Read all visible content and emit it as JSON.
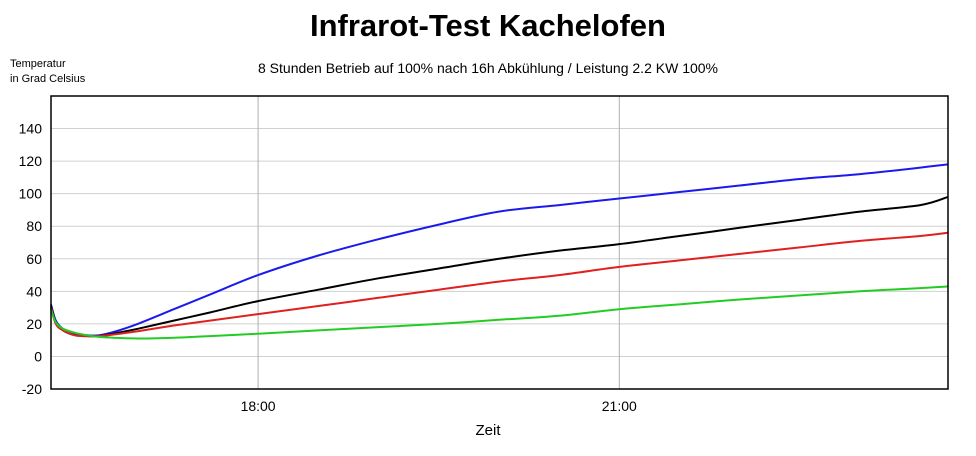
{
  "chart_data": {
    "type": "line",
    "title": "Infrarot-Test Kachelofen",
    "subtitle": "8 Stunden Betrieb auf 100% nach 16h Abkühlung / Leistung 2.2 KW 100%",
    "ylabel_line1": "Temperatur",
    "ylabel_line2": "in Grad Celsius",
    "xlabel": "Zeit",
    "x_unit": "hours (time of day)",
    "xlim": [
      16.28,
      23.73
    ],
    "ylim": [
      -20,
      160
    ],
    "yticks": [
      -20,
      0,
      20,
      40,
      60,
      80,
      100,
      120,
      140
    ],
    "xticks": [
      {
        "value": 18.0,
        "label": "18:00"
      },
      {
        "value": 21.0,
        "label": "21:00"
      }
    ],
    "grid": true,
    "series": [
      {
        "color": "#1a1aee",
        "x": [
          16.28,
          16.32,
          16.38,
          16.48,
          16.58,
          16.68,
          16.8,
          17.0,
          17.3,
          17.6,
          18.0,
          18.5,
          19.0,
          19.5,
          20.0,
          20.5,
          21.0,
          21.5,
          22.0,
          22.5,
          23.0,
          23.5,
          23.73
        ],
        "y": [
          32,
          22,
          17,
          14,
          13,
          13,
          15,
          20,
          29,
          38,
          50,
          62,
          72,
          81,
          89,
          93,
          97,
          101,
          105,
          109,
          112,
          116,
          118
        ]
      },
      {
        "color": "#000000",
        "x": [
          16.28,
          16.32,
          16.38,
          16.48,
          16.58,
          16.68,
          16.8,
          17.0,
          17.3,
          17.6,
          18.0,
          18.5,
          19.0,
          19.5,
          20.0,
          20.5,
          21.0,
          21.5,
          22.0,
          22.5,
          23.0,
          23.5,
          23.73
        ],
        "y": [
          31,
          21,
          16,
          13,
          12.5,
          12.5,
          14,
          17,
          22,
          27,
          34,
          41,
          48,
          54,
          60,
          65,
          69,
          74,
          79,
          84,
          89,
          93,
          98
        ]
      },
      {
        "color": "#e02020",
        "x": [
          16.28,
          16.32,
          16.38,
          16.48,
          16.58,
          16.68,
          16.8,
          17.0,
          17.3,
          17.6,
          18.0,
          18.5,
          19.0,
          19.5,
          20.0,
          20.5,
          21.0,
          21.5,
          22.0,
          22.5,
          23.0,
          23.5,
          23.73
        ],
        "y": [
          30,
          20,
          16,
          13,
          12.5,
          12.5,
          13.5,
          15.5,
          19,
          22,
          26,
          31,
          36,
          41,
          46,
          50,
          55,
          59,
          63,
          67,
          71,
          74,
          76
        ]
      },
      {
        "color": "#22cc22",
        "x": [
          16.28,
          16.32,
          16.38,
          16.48,
          16.58,
          16.68,
          16.8,
          17.0,
          17.3,
          17.6,
          18.0,
          18.5,
          19.0,
          19.5,
          20.0,
          20.5,
          21.0,
          21.5,
          22.0,
          22.5,
          23.0,
          23.5,
          23.73
        ],
        "y": [
          29,
          21,
          17,
          14.5,
          13,
          12,
          11.5,
          11,
          11.5,
          12.5,
          14,
          16,
          18,
          20,
          22.5,
          25,
          29,
          32,
          35,
          37.5,
          40,
          42,
          43
        ]
      }
    ]
  }
}
